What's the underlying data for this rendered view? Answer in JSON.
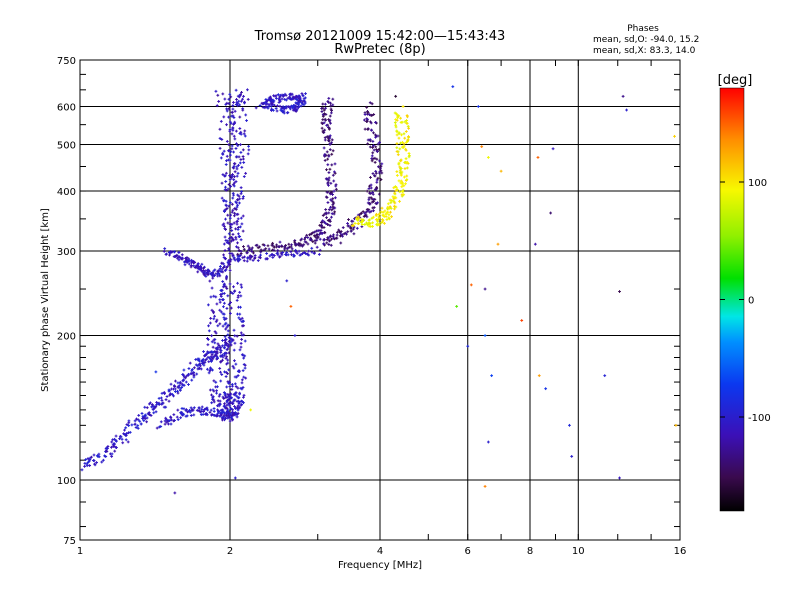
{
  "title": {
    "line1": "Tromsø 20121009 15:42:00—15:43:43",
    "line2": "RwPretec (8p)"
  },
  "phase_info": {
    "heading": "Phases",
    "line_o": "mean, sd,O: -94.0, 15.2",
    "line_x": "mean, sd,X: 83.3, 14.0"
  },
  "colorbar": {
    "label": "[deg]",
    "ticks": [
      "100",
      "0",
      "-100"
    ],
    "tick_values": [
      100,
      0,
      -100
    ],
    "range": [
      -180,
      180
    ]
  },
  "chart_data": {
    "type": "scatter",
    "xlabel": "Frequency [MHz]",
    "ylabel": "Stationary phase Virtual Height [km]",
    "xscale": "log",
    "yscale": "log",
    "xlim": [
      1,
      16
    ],
    "ylim": [
      75,
      750
    ],
    "x_ticks": [
      1,
      2,
      4,
      6,
      8,
      10,
      16
    ],
    "x_tick_labels": [
      "1",
      "2",
      "4",
      "6",
      "8",
      "10",
      "16"
    ],
    "y_ticks": [
      75,
      100,
      200,
      300,
      400,
      500,
      600,
      750
    ],
    "y_tick_labels": [
      "75",
      "100",
      "200",
      "300",
      "400",
      "500",
      "600",
      "750"
    ],
    "grid_x": [
      2,
      4,
      6,
      8,
      10
    ],
    "grid_y": [
      100,
      200,
      300,
      400,
      500,
      600
    ],
    "color_by": "phase_deg",
    "traces": [
      {
        "points": [
          [
            1.0,
            106
          ],
          [
            1.1,
            112
          ],
          [
            1.2,
            120
          ],
          [
            1.3,
            132
          ],
          [
            1.4,
            140
          ],
          [
            1.5,
            150
          ],
          [
            1.6,
            160
          ],
          [
            1.7,
            170
          ],
          [
            1.8,
            180
          ],
          [
            1.9,
            185
          ],
          [
            2.0,
            195
          ]
        ],
        "phase": -105,
        "spread": 0.03
      },
      {
        "points": [
          [
            1.45,
            130
          ],
          [
            1.6,
            138
          ],
          [
            1.75,
            140
          ],
          [
            1.9,
            138
          ],
          [
            2.0,
            135
          ],
          [
            2.05,
            140
          ]
        ],
        "phase": -105,
        "spread": 0.025
      },
      {
        "points": [
          [
            1.5,
            300
          ],
          [
            1.6,
            290
          ],
          [
            1.7,
            280
          ],
          [
            1.8,
            270
          ],
          [
            1.9,
            270
          ],
          [
            2.0,
            290
          ],
          [
            2.2,
            290
          ],
          [
            2.6,
            295
          ],
          [
            3.0,
            300
          ]
        ],
        "phase": -110,
        "spread": 0.02
      },
      {
        "points": [
          [
            1.9,
            260
          ],
          [
            1.9,
            220
          ],
          [
            1.88,
            190
          ],
          [
            1.9,
            170
          ],
          [
            1.92,
            150
          ],
          [
            1.95,
            140
          ],
          [
            2.0,
            145
          ],
          [
            2.05,
            150
          ],
          [
            2.05,
            170
          ],
          [
            2.05,
            200
          ],
          [
            2.0,
            230
          ],
          [
            2.02,
            270
          ]
        ],
        "phase": -108,
        "spread": 0.05
      },
      {
        "points": [
          [
            1.95,
            640
          ],
          [
            1.98,
            500
          ],
          [
            2.0,
            420
          ],
          [
            2.0,
            350
          ],
          [
            2.02,
            300
          ],
          [
            2.05,
            350
          ],
          [
            2.08,
            420
          ],
          [
            2.1,
            500
          ],
          [
            2.05,
            600
          ],
          [
            2.1,
            640
          ]
        ],
        "phase": -110,
        "spread": 0.04
      },
      {
        "points": [
          [
            2.3,
            600
          ],
          [
            2.45,
            620
          ],
          [
            2.6,
            630
          ],
          [
            2.8,
            630
          ],
          [
            2.75,
            600
          ],
          [
            2.6,
            590
          ],
          [
            2.4,
            600
          ]
        ],
        "phase": -105,
        "spread": 0.02
      },
      {
        "points": [
          [
            2.1,
            300
          ],
          [
            2.4,
            305
          ],
          [
            2.7,
            310
          ],
          [
            2.95,
            320
          ],
          [
            3.1,
            340
          ],
          [
            3.2,
            370
          ],
          [
            3.2,
            420
          ],
          [
            3.15,
            500
          ],
          [
            3.1,
            560
          ],
          [
            3.15,
            620
          ]
        ],
        "phase": -135,
        "spread": 0.025
      },
      {
        "points": [
          [
            3.0,
            310
          ],
          [
            3.3,
            320
          ],
          [
            3.55,
            340
          ],
          [
            3.8,
            365
          ],
          [
            3.9,
            400
          ],
          [
            3.95,
            460
          ],
          [
            3.85,
            530
          ],
          [
            3.75,
            600
          ]
        ],
        "phase": -135,
        "spread": 0.03
      },
      {
        "points": [
          [
            3.6,
            345
          ],
          [
            3.85,
            345
          ],
          [
            4.1,
            355
          ],
          [
            4.3,
            380
          ],
          [
            4.4,
            420
          ],
          [
            4.45,
            470
          ],
          [
            4.45,
            530
          ],
          [
            4.4,
            580
          ]
        ],
        "phase": 95,
        "spread": 0.03
      }
    ],
    "scattered_points": [
      [
        5.6,
        660,
        -80
      ],
      [
        4.3,
        630,
        -160
      ],
      [
        4.45,
        600,
        100
      ],
      [
        6.3,
        600,
        -80
      ],
      [
        6.4,
        495,
        140
      ],
      [
        6.6,
        470,
        90
      ],
      [
        7.0,
        440,
        120
      ],
      [
        8.3,
        470,
        150
      ],
      [
        8.9,
        490,
        -110
      ],
      [
        8.8,
        360,
        -140
      ],
      [
        8.2,
        310,
        -120
      ],
      [
        6.9,
        310,
        130
      ],
      [
        6.5,
        250,
        -130
      ],
      [
        6.1,
        255,
        150
      ],
      [
        5.7,
        230,
        40
      ],
      [
        7.7,
        215,
        160
      ],
      [
        6.0,
        190,
        -90
      ],
      [
        6.5,
        200,
        -60
      ],
      [
        6.7,
        165,
        -70
      ],
      [
        8.35,
        165,
        130
      ],
      [
        8.6,
        155,
        -80
      ],
      [
        9.6,
        130,
        -90
      ],
      [
        9.7,
        112,
        -100
      ],
      [
        6.6,
        120,
        -100
      ],
      [
        6.5,
        97,
        140
      ],
      [
        11.3,
        165,
        -95
      ],
      [
        12.3,
        630,
        -130
      ],
      [
        12.5,
        590,
        -100
      ],
      [
        15.6,
        520,
        110
      ],
      [
        15.7,
        130,
        120
      ],
      [
        12.1,
        247,
        -150
      ],
      [
        12.1,
        101,
        -110
      ],
      [
        1.55,
        94,
        -120
      ],
      [
        2.65,
        230,
        150
      ],
      [
        2.7,
        200,
        -100
      ],
      [
        2.05,
        101,
        -100
      ],
      [
        1.42,
        168,
        -80
      ],
      [
        2.2,
        140,
        90
      ],
      [
        2.6,
        260,
        -100
      ]
    ]
  }
}
